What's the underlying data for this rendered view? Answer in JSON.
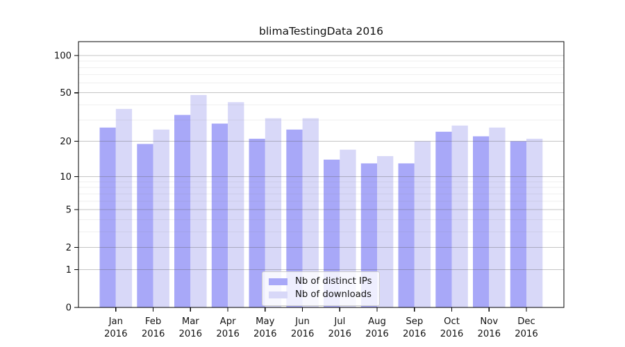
{
  "window": {
    "background": "#ffffff"
  },
  "chart_data": {
    "type": "bar",
    "title": "blimaTestingData 2016",
    "categories": [
      "Jan",
      "Feb",
      "Mar",
      "Apr",
      "May",
      "Jun",
      "Jul",
      "Aug",
      "Sep",
      "Oct",
      "Nov",
      "Dec"
    ],
    "year_label": "2016",
    "series": [
      {
        "name": "Nb of distinct IPs",
        "color": "#a8a8f8",
        "values": [
          26,
          19,
          33,
          28,
          21,
          25,
          14,
          13,
          13,
          24,
          22,
          20
        ]
      },
      {
        "name": "Nb of downloads",
        "color": "#d8d8f8",
        "values": [
          37,
          25,
          48,
          42,
          31,
          31,
          17,
          15,
          20,
          27,
          26,
          21
        ]
      }
    ],
    "xlabel": "",
    "ylabel": "",
    "yscale": "log(value+1)",
    "ylim": [
      0,
      130
    ],
    "yticks": [
      0,
      1,
      2,
      5,
      10,
      20,
      50,
      100
    ],
    "minor_gridlines": [
      3,
      4,
      6,
      7,
      8,
      9,
      30,
      40,
      60,
      70,
      80,
      90
    ],
    "grid": "on",
    "legend_position": "lower-center-inside"
  },
  "colors": {
    "bar_ips": "#a8a8f8",
    "bar_downloads": "#d8d8f8",
    "grid_major": "rgba(90,90,90,0.35)",
    "grid_minor": "rgba(120,120,120,0.12)",
    "axis": "#000000",
    "text": "#111111",
    "legend_border": "#cccccc",
    "legend_background": "rgba(255,255,255,0.8)"
  }
}
